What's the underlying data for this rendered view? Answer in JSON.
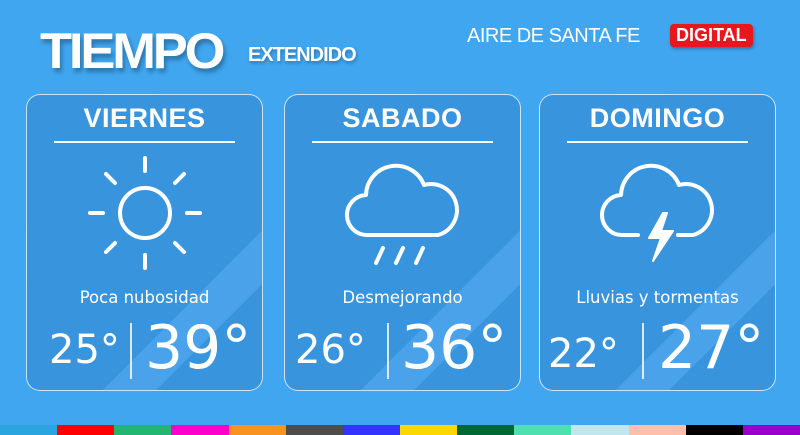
{
  "header": {
    "title": "TIEMPO",
    "subtitle": "EXTENDIDO",
    "brand": "AIRE DE SANTA FE",
    "badge": "DIGITAL"
  },
  "days": [
    {
      "day": "VIERNES",
      "icon": "sun-icon",
      "description": "Poca nubosidad",
      "min": "25°",
      "max": "39°"
    },
    {
      "day": "SABADO",
      "icon": "rain-cloud-icon",
      "description": "Desmejorando",
      "min": "26°",
      "max": "36°"
    },
    {
      "day": "DOMINGO",
      "icon": "storm-cloud-icon",
      "description": "Lluvias y tormentas",
      "min": "22°",
      "max": "27°"
    }
  ],
  "colors": {
    "background": "#40a6f0",
    "badge": "#e8161d"
  },
  "strip_colors": [
    "#2aa5e0",
    "#ff0000",
    "#22b573",
    "#ff00cc",
    "#f7931e",
    "#4d4d4d",
    "#3333ff",
    "#ffd700",
    "#006837",
    "#4ee0b0",
    "#c0e6f0",
    "#ffbfa8",
    "#000000",
    "#9900cc"
  ]
}
